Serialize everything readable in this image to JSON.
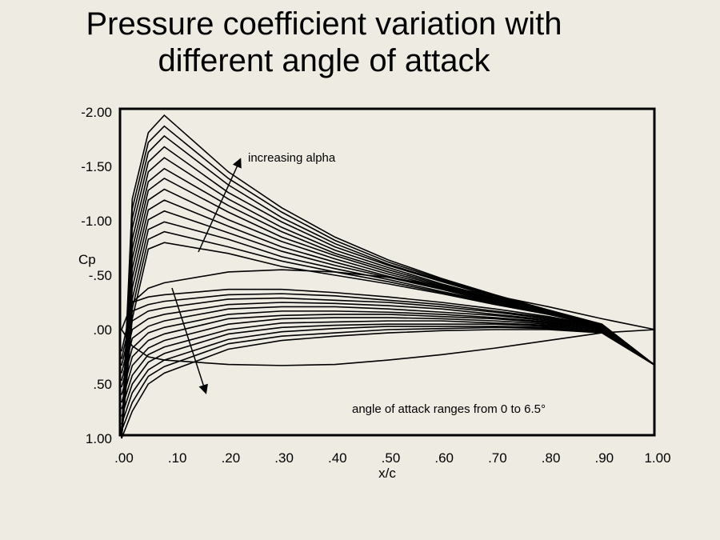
{
  "title": {
    "line1": "Pressure coefficient variation with",
    "line2": "different angle of attack"
  },
  "chart_data": {
    "type": "line",
    "title": "Pressure coefficient variation with different angle of attack",
    "xlabel": "x/c",
    "ylabel": "Cp",
    "xlim": [
      0,
      1.0
    ],
    "ylim": [
      -2.0,
      1.0
    ],
    "y_inverted": true,
    "grid": false,
    "line_color": "#000000",
    "x_ticks": [
      ".00",
      ".10",
      ".20",
      ".30",
      ".40",
      ".50",
      ".60",
      ".70",
      ".80",
      ".90",
      "1.00"
    ],
    "y_ticks": [
      "-2.00",
      "-1.50",
      "-1.00",
      "-.50",
      ".00",
      ".50",
      "1.00"
    ],
    "annotations": {
      "increasing_upper": "increasing alpha",
      "range_note": "angle of attack ranges from 0 to 6.5°"
    },
    "x": [
      0,
      0.02,
      0.05,
      0.08,
      0.2,
      0.3,
      0.4,
      0.5,
      0.6,
      0.7,
      0.8,
      0.9,
      1.0
    ],
    "series": [
      {
        "alpha": 0,
        "surface": "upper",
        "values": [
          0.0,
          -0.25,
          -0.38,
          -0.43,
          -0.53,
          -0.55,
          -0.53,
          -0.48,
          -0.4,
          -0.31,
          -0.21,
          -0.1,
          0.0
        ]
      },
      {
        "alpha": 0,
        "surface": "lower",
        "values": [
          0.0,
          0.15,
          0.25,
          0.28,
          0.32,
          0.33,
          0.32,
          0.28,
          0.23,
          0.17,
          0.1,
          0.03,
          0.0
        ]
      },
      {
        "alpha": 0.5,
        "surface": "upper",
        "values": [
          1.0,
          -0.1,
          -0.74,
          -0.8,
          -0.7,
          -0.58,
          -0.5,
          -0.42,
          -0.33,
          -0.23,
          -0.14,
          -0.03,
          0.33
        ]
      },
      {
        "alpha": 1.0,
        "surface": "upper",
        "values": [
          1.0,
          -0.19,
          -0.83,
          -0.9,
          -0.76,
          -0.63,
          -0.53,
          -0.44,
          -0.34,
          -0.24,
          -0.14,
          -0.03,
          0.33
        ]
      },
      {
        "alpha": 1.5,
        "surface": "upper",
        "values": [
          1.0,
          -0.28,
          -0.92,
          -0.99,
          -0.83,
          -0.67,
          -0.56,
          -0.46,
          -0.35,
          -0.25,
          -0.15,
          -0.03,
          0.33
        ]
      },
      {
        "alpha": 2.0,
        "surface": "upper",
        "values": [
          1.0,
          -0.38,
          -1.01,
          -1.09,
          -0.89,
          -0.72,
          -0.59,
          -0.48,
          -0.37,
          -0.25,
          -0.15,
          -0.04,
          0.33
        ]
      },
      {
        "alpha": 2.5,
        "surface": "upper",
        "values": [
          1.0,
          -0.47,
          -1.1,
          -1.19,
          -0.95,
          -0.76,
          -0.62,
          -0.49,
          -0.38,
          -0.26,
          -0.15,
          -0.04,
          0.33
        ]
      },
      {
        "alpha": 3.0,
        "surface": "upper",
        "values": [
          1.0,
          -0.56,
          -1.19,
          -1.29,
          -1.01,
          -0.81,
          -0.65,
          -0.51,
          -0.39,
          -0.27,
          -0.16,
          -0.04,
          0.33
        ]
      },
      {
        "alpha": 3.5,
        "surface": "upper",
        "values": [
          1.0,
          -0.65,
          -1.28,
          -1.39,
          -1.08,
          -0.85,
          -0.68,
          -0.53,
          -0.4,
          -0.28,
          -0.16,
          -0.04,
          0.33
        ]
      },
      {
        "alpha": 4.0,
        "surface": "upper",
        "values": [
          1.0,
          -0.74,
          -1.36,
          -1.48,
          -1.14,
          -0.9,
          -0.7,
          -0.55,
          -0.41,
          -0.28,
          -0.16,
          -0.04,
          0.33
        ]
      },
      {
        "alpha": 4.5,
        "surface": "upper",
        "values": [
          1.0,
          -0.83,
          -1.45,
          -1.58,
          -1.2,
          -0.94,
          -0.73,
          -0.57,
          -0.42,
          -0.29,
          -0.17,
          -0.04,
          0.33
        ]
      },
      {
        "alpha": 5.0,
        "surface": "upper",
        "values": [
          1.0,
          -0.93,
          -1.54,
          -1.68,
          -1.26,
          -0.99,
          -0.76,
          -0.59,
          -0.44,
          -0.3,
          -0.17,
          -0.05,
          0.33
        ]
      },
      {
        "alpha": 5.5,
        "surface": "upper",
        "values": [
          1.0,
          -1.02,
          -1.63,
          -1.78,
          -1.33,
          -1.03,
          -0.79,
          -0.6,
          -0.45,
          -0.31,
          -0.17,
          -0.05,
          0.33
        ]
      },
      {
        "alpha": 6.0,
        "surface": "upper",
        "values": [
          1.0,
          -1.11,
          -1.72,
          -1.87,
          -1.39,
          -1.08,
          -0.82,
          -0.62,
          -0.46,
          -0.31,
          -0.18,
          -0.05,
          0.33
        ]
      },
      {
        "alpha": 6.5,
        "surface": "upper",
        "values": [
          1.0,
          -1.2,
          -1.81,
          -1.97,
          -1.45,
          -1.12,
          -0.85,
          -0.64,
          -0.47,
          -0.32,
          -0.18,
          -0.05,
          0.33
        ]
      },
      {
        "alpha": 0.5,
        "surface": "lower",
        "values": [
          0.2,
          -0.25,
          -0.3,
          -0.32,
          -0.37,
          -0.37,
          -0.34,
          -0.3,
          -0.25,
          -0.19,
          -0.12,
          -0.03,
          0.33
        ]
      },
      {
        "alpha": 1.0,
        "surface": "lower",
        "values": [
          0.27,
          -0.17,
          -0.23,
          -0.26,
          -0.32,
          -0.33,
          -0.31,
          -0.27,
          -0.23,
          -0.17,
          -0.11,
          -0.03,
          0.33
        ]
      },
      {
        "alpha": 1.5,
        "surface": "lower",
        "values": [
          0.33,
          -0.08,
          -0.17,
          -0.2,
          -0.28,
          -0.29,
          -0.27,
          -0.25,
          -0.21,
          -0.16,
          -0.1,
          -0.02,
          0.33
        ]
      },
      {
        "alpha": 2.0,
        "surface": "lower",
        "values": [
          0.4,
          0.0,
          -0.1,
          -0.14,
          -0.23,
          -0.25,
          -0.24,
          -0.22,
          -0.19,
          -0.14,
          -0.09,
          -0.02,
          0.33
        ]
      },
      {
        "alpha": 2.5,
        "surface": "lower",
        "values": [
          0.47,
          0.08,
          -0.03,
          -0.08,
          -0.19,
          -0.21,
          -0.21,
          -0.19,
          -0.16,
          -0.13,
          -0.08,
          -0.01,
          0.33
        ]
      },
      {
        "alpha": 3.0,
        "surface": "lower",
        "values": [
          0.53,
          0.17,
          0.03,
          -0.02,
          -0.14,
          -0.17,
          -0.17,
          -0.16,
          -0.14,
          -0.11,
          -0.07,
          -0.01,
          0.33
        ]
      },
      {
        "alpha": 3.5,
        "surface": "lower",
        "values": [
          0.6,
          0.25,
          0.1,
          0.04,
          -0.1,
          -0.13,
          -0.14,
          -0.14,
          -0.12,
          -0.1,
          -0.06,
          0.0,
          0.33
        ]
      },
      {
        "alpha": 4.0,
        "surface": "lower",
        "values": [
          0.67,
          0.33,
          0.17,
          0.1,
          -0.05,
          -0.1,
          -0.11,
          -0.11,
          -0.1,
          -0.08,
          -0.05,
          0.0,
          0.33
        ]
      },
      {
        "alpha": 4.5,
        "surface": "lower",
        "values": [
          0.73,
          0.42,
          0.23,
          0.16,
          0.0,
          -0.06,
          -0.07,
          -0.08,
          -0.08,
          -0.06,
          -0.04,
          0.01,
          0.33
        ]
      },
      {
        "alpha": 5.0,
        "surface": "lower",
        "values": [
          0.8,
          0.5,
          0.3,
          0.22,
          0.04,
          -0.02,
          -0.04,
          -0.05,
          -0.05,
          -0.05,
          -0.03,
          0.01,
          0.33
        ]
      },
      {
        "alpha": 5.5,
        "surface": "lower",
        "values": [
          0.87,
          0.58,
          0.37,
          0.28,
          0.09,
          0.02,
          -0.01,
          -0.03,
          -0.03,
          -0.03,
          -0.02,
          0.02,
          0.33
        ]
      },
      {
        "alpha": 6.0,
        "surface": "lower",
        "values": [
          0.93,
          0.67,
          0.43,
          0.34,
          0.13,
          0.06,
          0.03,
          0.0,
          -0.01,
          -0.02,
          -0.01,
          0.02,
          0.33
        ]
      },
      {
        "alpha": 6.5,
        "surface": "lower",
        "values": [
          1.0,
          0.75,
          0.5,
          0.4,
          0.18,
          0.1,
          0.06,
          0.03,
          0.01,
          0.0,
          0.0,
          0.03,
          0.33
        ]
      }
    ]
  }
}
